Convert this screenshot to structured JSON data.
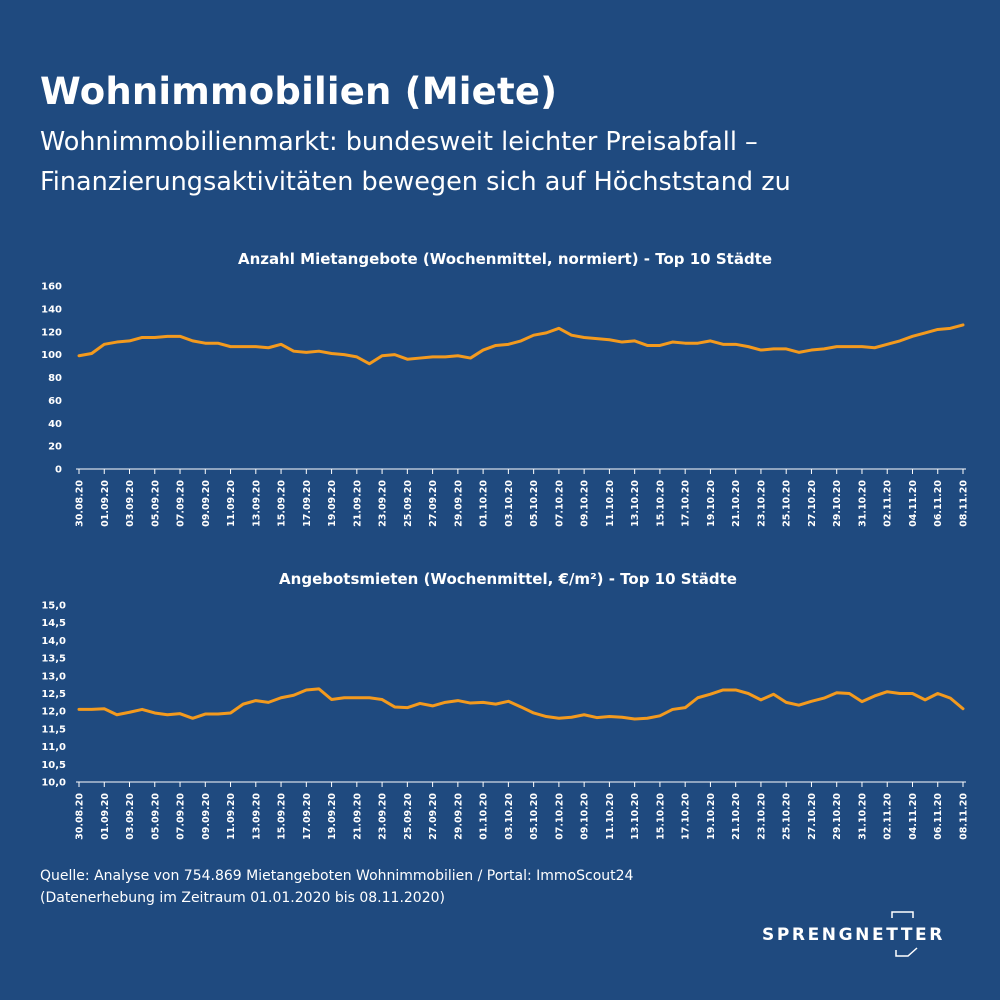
{
  "header": {
    "title": "Wohnimmobilien (Miete)",
    "subtitle_line1": "Wohnimmobilienmarkt: bundesweit leichter Preisabfall –",
    "subtitle_line2": "Finanzierungsaktivitäten bewegen sich auf Höchststand zu"
  },
  "footer": {
    "source_line1": "Quelle: Analyse von 754.869  Mietangeboten Wohnimmobilien / Portal: ImmoScout24",
    "source_line2": "(Datenerhebung im Zeitraum 01.01.2020 bis  08.11.2020)"
  },
  "logo": {
    "text": "SPRENGNETTER"
  },
  "colors": {
    "background": "#1f4a7f",
    "line": "#f39a1e",
    "axis": "#ffffff"
  },
  "chart_data": [
    {
      "type": "line",
      "title": "Anzahl Mietangebote (Wochenmittel, normiert) - Top 10 Städte",
      "xlabel": "",
      "ylabel": "",
      "ylim": [
        0,
        160
      ],
      "yticks": [
        "0",
        "20",
        "40",
        "60",
        "80",
        "100",
        "120",
        "140",
        "160"
      ],
      "yvalues": [
        0,
        20,
        40,
        60,
        80,
        100,
        120,
        140,
        160
      ],
      "grid": false,
      "xticks": [
        "30.08.20",
        "01.09.20",
        "03.09.20",
        "05.09.20",
        "07.09.20",
        "09.09.20",
        "11.09.20",
        "13.09.20",
        "15.09.20",
        "17.09.20",
        "19.09.20",
        "21.09.20",
        "23.09.20",
        "25.09.20",
        "27.09.20",
        "29.09.20",
        "01.10.20",
        "03.10.20",
        "05.10.20",
        "07.10.20",
        "09.10.20",
        "11.10.20",
        "13.10.20",
        "15.10.20",
        "17.10.20",
        "19.10.20",
        "21.10.20",
        "23.10.20",
        "25.10.20",
        "27.10.20",
        "29.10.20",
        "31.10.20",
        "02.11.20",
        "04.11.20",
        "06.11.20",
        "08.11.20"
      ],
      "series": [
        {
          "values": [
            99,
            101,
            109,
            111,
            112,
            115,
            115,
            116,
            116,
            112,
            110,
            110,
            107,
            107,
            107,
            106,
            109,
            103,
            102,
            103,
            101,
            100,
            98,
            92,
            99,
            100,
            96,
            97,
            98,
            98,
            99,
            97,
            104,
            108,
            109,
            112,
            117,
            119,
            123,
            117,
            115,
            114,
            113,
            111,
            112,
            108,
            108,
            111,
            110,
            110,
            112,
            109,
            109,
            107,
            104,
            105,
            105,
            102,
            104,
            105,
            107,
            107,
            107,
            106,
            109,
            112,
            116,
            119,
            122,
            123,
            126
          ]
        }
      ]
    },
    {
      "type": "line",
      "title": "Angebotsmieten (Wochenmittel, €/m²) - Top 10 Städte",
      "xlabel": "",
      "ylabel": "",
      "ylim": [
        10.0,
        15.0
      ],
      "yticks": [
        "10,0",
        "10,5",
        "11,0",
        "11,5",
        "12,0",
        "12,5",
        "13,0",
        "13,5",
        "14,0",
        "14,5",
        "15,0"
      ],
      "yvalues": [
        10.0,
        10.5,
        11.0,
        11.5,
        12.0,
        12.5,
        13.0,
        13.5,
        14.0,
        14.5,
        15.0
      ],
      "grid": false,
      "xticks": [
        "30.08.20",
        "01.09.20",
        "03.09.20",
        "05.09.20",
        "07.09.20",
        "09.09.20",
        "11.09.20",
        "13.09.20",
        "15.09.20",
        "17.09.20",
        "19.09.20",
        "21.09.20",
        "23.09.20",
        "25.09.20",
        "27.09.20",
        "29.09.20",
        "01.10.20",
        "03.10.20",
        "05.10.20",
        "07.10.20",
        "09.10.20",
        "11.10.20",
        "13.10.20",
        "15.10.20",
        "17.10.20",
        "19.10.20",
        "21.10.20",
        "23.10.20",
        "25.10.20",
        "27.10.20",
        "29.10.20",
        "31.10.20",
        "02.11.20",
        "04.11.20",
        "06.11.20",
        "08.11.20"
      ],
      "series": [
        {
          "values": [
            12.05,
            12.05,
            12.07,
            11.9,
            11.97,
            12.05,
            11.95,
            11.9,
            11.93,
            11.8,
            11.92,
            11.92,
            11.95,
            12.2,
            12.3,
            12.25,
            12.38,
            12.45,
            12.6,
            12.63,
            12.33,
            12.38,
            12.38,
            12.38,
            12.33,
            12.12,
            12.1,
            12.22,
            12.15,
            12.25,
            12.3,
            12.23,
            12.25,
            12.2,
            12.28,
            12.12,
            11.95,
            11.85,
            11.8,
            11.83,
            11.9,
            11.82,
            11.85,
            11.83,
            11.78,
            11.8,
            11.87,
            12.05,
            12.1,
            12.38,
            12.48,
            12.6,
            12.6,
            12.5,
            12.32,
            12.48,
            12.25,
            12.17,
            12.28,
            12.37,
            12.52,
            12.5,
            12.27,
            12.43,
            12.55,
            12.5,
            12.5,
            12.32,
            12.5,
            12.37,
            12.07
          ]
        }
      ]
    }
  ]
}
